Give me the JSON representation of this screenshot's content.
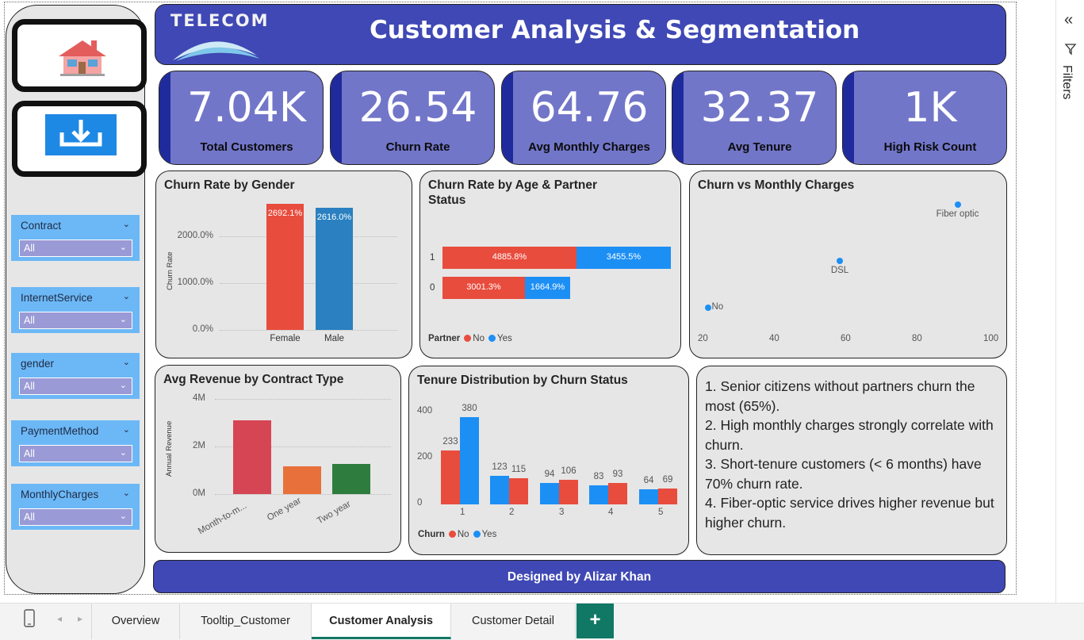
{
  "header": {
    "logo_text": "TELECOM",
    "title": "Customer Analysis & Segmentation"
  },
  "nav": {
    "home_icon": "house-icon",
    "export_icon": "download-icon"
  },
  "slicers": [
    {
      "label": "Contract",
      "value": "All"
    },
    {
      "label": "InternetService",
      "value": "All"
    },
    {
      "label": "gender",
      "value": "All"
    },
    {
      "label": "PaymentMethod",
      "value": "All"
    },
    {
      "label": "MonthlyCharges",
      "value": "All"
    }
  ],
  "kpis": [
    {
      "value": "7.04K",
      "caption": "Total Customers"
    },
    {
      "value": "26.54",
      "caption": "Churn Rate"
    },
    {
      "value": "64.76",
      "caption": "Avg Monthly Charges"
    },
    {
      "value": "32.37",
      "caption": "Avg Tenure"
    },
    {
      "value": "1K",
      "caption": "High Risk Count"
    }
  ],
  "colors": {
    "no": "#e84c3d",
    "yes": "#1c8ff5",
    "male": "#2a80c0",
    "kpi_bg": "#7276c9",
    "header_bg": "#3f48b4",
    "accent_tab": "#117865"
  },
  "chart_data": [
    {
      "type": "bar",
      "title": "Churn Rate by Gender",
      "ylabel": "Churn Rate",
      "categories": [
        "Female",
        "Male"
      ],
      "values": [
        2692.1,
        2616.0
      ],
      "data_labels": [
        "2692.1%",
        "2616.0%"
      ],
      "yticks": [
        "0.0%",
        "1000.0%",
        "2000.0%"
      ],
      "ylim": [
        0,
        2700
      ]
    },
    {
      "type": "bar",
      "orientation": "horizontal-stacked",
      "title": "Churn Rate by Age & Partner Status",
      "categories": [
        "1",
        "0"
      ],
      "legend_title": "Partner",
      "series": [
        {
          "name": "No",
          "values": [
            4885.8,
            3001.3
          ],
          "labels": [
            "4885.8%",
            "3001.3%"
          ]
        },
        {
          "name": "Yes",
          "values": [
            3455.5,
            1664.9
          ],
          "labels": [
            "3455.5%",
            "1664.9%"
          ]
        }
      ]
    },
    {
      "type": "scatter",
      "title": "Churn vs Monthly Charges",
      "xticks": [
        "20",
        "40",
        "60",
        "80",
        "100"
      ],
      "xlim": [
        20,
        100
      ],
      "points": [
        {
          "label": "No",
          "x": 21,
          "y": 0.0
        },
        {
          "label": "DSL",
          "x": 58,
          "y": 0.19
        },
        {
          "label": "Fiber optic",
          "x": 91,
          "y": 0.42
        }
      ]
    },
    {
      "type": "bar",
      "title": "Avg Revenue by Contract Type",
      "ylabel": "Annual Revenue",
      "categories": [
        "Month-to-m...",
        "One year",
        "Two year"
      ],
      "values": [
        3.1,
        1.15,
        1.25
      ],
      "yticks": [
        "0M",
        "2M",
        "4M"
      ],
      "ylim": [
        0,
        4
      ],
      "colors": [
        "#d64553",
        "#e8703a",
        "#2f7d3e"
      ]
    },
    {
      "type": "bar",
      "title": "Tenure Distribution by Churn Status",
      "categories": [
        "1",
        "2",
        "3",
        "4",
        "5"
      ],
      "legend_title": "Churn",
      "yticks": [
        "0",
        "200",
        "400"
      ],
      "ylim": [
        0,
        400
      ],
      "series": [
        {
          "name": "No",
          "values": [
            233,
            115,
            106,
            93,
            69
          ]
        },
        {
          "name": "Yes",
          "values": [
            380,
            123,
            94,
            83,
            64
          ]
        }
      ]
    }
  ],
  "insights": [
    "1. Senior citizens without partners churn the most (65%).",
    "2. High monthly charges strongly correlate with churn.",
    "3. Short-tenure customers (< 6 months) have 70% churn rate.",
    "4. Fiber-optic service drives higher revenue but higher churn."
  ],
  "footer": {
    "text": "Designed by Alizar Khan"
  },
  "filters_pane": {
    "label": "Filters",
    "collapse_icon": "double-chevron-left-icon",
    "filter_icon": "funnel-icon"
  },
  "tabs": [
    {
      "label": "Overview",
      "active": false
    },
    {
      "label": "Tooltip_Customer",
      "active": false
    },
    {
      "label": "Customer Analysis",
      "active": true
    },
    {
      "label": "Customer Detail",
      "active": false
    }
  ],
  "add_tab": "+"
}
